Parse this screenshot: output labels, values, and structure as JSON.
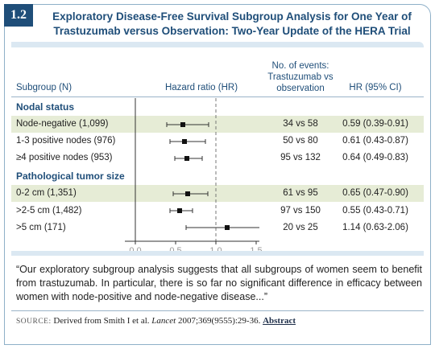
{
  "figure_number": "1.2",
  "title_line1": "Exploratory Disease-Free Survival Subgroup Analysis for One Year of",
  "title_line2": "Trastuzumab versus Observation: Two-Year Update of the HERA Trial",
  "headers": {
    "subgroup": "Subgroup (N)",
    "hazard": "Hazard ratio (HR)",
    "events_line1": "No. of events:",
    "events_line2": "Trastuzumab vs",
    "events_line3": "observation",
    "ci": "HR (95% CI)"
  },
  "sections": {
    "nodal": "Nodal status",
    "tumor": "Pathological tumor size"
  },
  "chart_data": {
    "type": "forest",
    "xlim": [
      0.0,
      1.5
    ],
    "x_ticks": [
      "0.0",
      "0.5",
      "1.0",
      "1.5"
    ],
    "reference_line": 1.0,
    "rows": [
      {
        "label": "Node-negative (1,099)",
        "events": "34 vs 58",
        "ci_text": "0.59 (0.39-0.91)",
        "hr": 0.59,
        "lo": 0.39,
        "hi": 0.91
      },
      {
        "label": "1-3 positive nodes (976)",
        "events": "50 vs 80",
        "ci_text": "0.61 (0.43-0.87)",
        "hr": 0.61,
        "lo": 0.43,
        "hi": 0.87
      },
      {
        "label": "≥4 positive nodes (953)",
        "events": "95 vs 132",
        "ci_text": "0.64 (0.49-0.83)",
        "hr": 0.64,
        "lo": 0.49,
        "hi": 0.83
      },
      {
        "label": "0-2 cm (1,351)",
        "events": "61 vs 95",
        "ci_text": "0.65 (0.47-0.90)",
        "hr": 0.65,
        "lo": 0.47,
        "hi": 0.9
      },
      {
        "label": ">2-5 cm (1,482)",
        "events": "97 vs 150",
        "ci_text": "0.55 (0.43-0.71)",
        "hr": 0.55,
        "lo": 0.43,
        "hi": 0.71
      },
      {
        "label": ">5 cm (171)",
        "events": "20 vs 25",
        "ci_text": "1.14 (0.63-2.06)",
        "hr": 1.14,
        "lo": 0.63,
        "hi": 2.06
      }
    ]
  },
  "quote": "“Our exploratory subgroup analysis suggests that all subgroups of women seem to benefit from trastuzumab. In particular, there is so far no significant difference in efficacy between women with node-positive and node-negative disease...”",
  "source": {
    "keyword": "SOURCE:",
    "text_before": "Derived from Smith I et al.",
    "journal": "Lancet",
    "text_after": "2007;369(9555):29-36.",
    "link": "Abstract"
  },
  "colors": {
    "accent": "#1f4e79",
    "row_highlight": "#e6ecd6",
    "panel": "#dbe8f2"
  }
}
